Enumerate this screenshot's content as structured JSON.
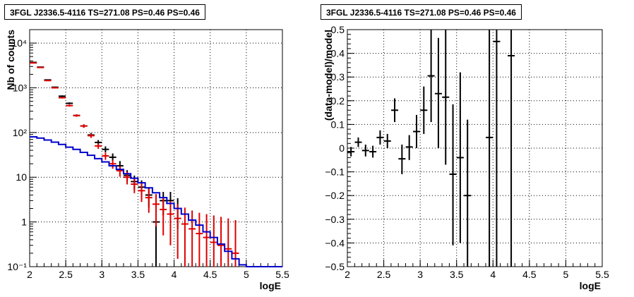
{
  "panels": {
    "left": {
      "title": "3FGL J2336.5-4116 TS=271.08 PS=0.46 PS=0.46",
      "chart_data": {
        "type": "line",
        "title": "3FGL J2336.5-4116 TS=271.08 PS=0.46 PS=0.46",
        "xlabel": "logE",
        "ylabel": "Nb of counts",
        "xlim": [
          2,
          5.5
        ],
        "ylim": [
          0.1,
          20000
        ],
        "yscale": "log",
        "grid": true,
        "x_ticks": [
          "2",
          "2.5",
          "3",
          "3.5",
          "4",
          "4.5",
          "5",
          "5.5"
        ],
        "y_ticks": [
          {
            "value": 0.1,
            "label": "10⁻¹"
          },
          {
            "value": 1,
            "label": "1"
          },
          {
            "value": 10,
            "label": "10"
          },
          {
            "value": 100,
            "label": "10²"
          },
          {
            "value": 1000,
            "label": "10³"
          },
          {
            "value": 10000,
            "label": "10⁴"
          }
        ],
        "series": [
          {
            "color": "#000000",
            "style": "errorbar",
            "x": [
              2.05,
              2.15,
              2.25,
              2.35,
              2.45,
              2.55,
              2.65,
              2.75,
              2.85,
              2.95,
              3.05,
              3.15,
              3.25,
              3.35,
              3.45,
              3.55,
              3.65,
              3.75,
              3.85,
              3.95,
              4.05
            ],
            "y": [
              3700,
              2900,
              1500,
              1030,
              650,
              450,
              240,
              140,
              88,
              60,
              42,
              28,
              18,
              11,
              8,
              6,
              4,
              1,
              3,
              3,
              2
            ],
            "y_low": [
              3640,
              2846,
              1461,
              998,
              625,
              429,
              225,
              128,
              79,
              52,
              36,
              23,
              14,
              8,
              5.2,
              3.6,
              2.1,
              0.1,
              1.4,
              1.4,
              0.7
            ],
            "y_high": [
              3760,
              2954,
              1539,
              1062,
              676,
              471,
              256,
              152,
              98,
              68,
              49,
              34,
              23,
              14.4,
              10.9,
              8.5,
              6,
              2.3,
              4.7,
              4.7,
              3.4
            ]
          },
          {
            "color": "#e00000",
            "style": "errorbar",
            "x": [
              2.05,
              2.15,
              2.25,
              2.35,
              2.45,
              2.55,
              2.65,
              2.75,
              2.85,
              2.95,
              3.05,
              3.15,
              3.25,
              3.35,
              3.45,
              3.55,
              3.65,
              3.75,
              3.85,
              3.95,
              4.05,
              4.15,
              4.25,
              4.35,
              4.45,
              4.55,
              4.65,
              4.75,
              4.85
            ],
            "y": [
              3600,
              2850,
              1450,
              1000,
              600,
              400,
              240,
              140,
              85,
              50,
              30,
              20,
              14,
              10,
              7,
              5,
              3.5,
              2.5,
              1.9,
              1.5,
              1.2,
              0.9,
              0.7,
              0.55,
              0.45,
              0.35,
              0.3,
              0.25,
              0.2
            ],
            "y_low": [
              3540,
              2797,
              1412,
              968,
              576,
              380,
              225,
              128,
              76,
              43,
              24.5,
              15.5,
              10.3,
              6.9,
              4.4,
              2.8,
              1.6,
              0.8,
              0.5,
              0.3,
              0.15,
              0.1,
              0.1,
              0.1,
              0.1,
              0.1,
              0.1,
              0.1,
              0.1
            ],
            "y_high": [
              3660,
              2903,
              1488,
              1032,
              624,
              420,
              256,
              152,
              94,
              57,
              35.5,
              24.5,
              17.7,
              13.2,
              9.7,
              7.3,
              5.5,
              4.2,
              3.4,
              2.9,
              2.5,
              2.1,
              1.8,
              1.6,
              1.5,
              1.4,
              1.3,
              1.2,
              1.1
            ]
          },
          {
            "color": "#0000cc",
            "style": "step",
            "x_edges": [
              2.0,
              2.1,
              2.2,
              2.3,
              2.4,
              2.5,
              2.6,
              2.7,
              2.8,
              2.9,
              3.0,
              3.1,
              3.2,
              3.3,
              3.4,
              3.5,
              3.6,
              3.7,
              3.8,
              3.9,
              4.0,
              4.1,
              4.2,
              4.3,
              4.4,
              4.5,
              4.6,
              4.7,
              4.8,
              4.9,
              5.0,
              5.1,
              5.2,
              5.3,
              5.4,
              5.5
            ],
            "y": [
              80,
              75,
              68,
              61,
              54,
              47,
              42,
              36,
              31,
              26,
              22,
              18,
              15,
              12,
              9.5,
              7.5,
              5.8,
              4.5,
              3.5,
              2.6,
              2.0,
              1.5,
              1.1,
              0.85,
              0.6,
              0.45,
              0.32,
              0.22,
              0.15,
              0.11,
              0.1,
              0.1,
              0.1,
              0.1,
              0.1
            ]
          }
        ]
      }
    },
    "right": {
      "title": "3FGL J2336.5-4116 TS=271.08 PS=0.46 PS=0.46",
      "chart_data": {
        "type": "scatter",
        "title": "3FGL J2336.5-4116 TS=271.08 PS=0.46 PS=0.46",
        "xlabel": "logE",
        "ylabel": "(data-model)/model",
        "xlim": [
          2,
          5.5
        ],
        "ylim": [
          -0.5,
          0.5
        ],
        "grid": true,
        "x_ticks": [
          "2",
          "2.5",
          "3",
          "3.5",
          "4",
          "4.5",
          "5",
          "5.5"
        ],
        "y_ticks": [
          "−0.5",
          "−0.4",
          "−0.3",
          "−0.2",
          "−0.1",
          "0",
          "0.1",
          "0.2",
          "0.3",
          "0.4",
          "0.5"
        ],
        "series": [
          {
            "color": "#000000",
            "style": "errorbar",
            "x": [
              2.05,
              2.15,
              2.25,
              2.35,
              2.45,
              2.55,
              2.65,
              2.75,
              2.85,
              2.95,
              3.05,
              3.15,
              3.25,
              3.35,
              3.45,
              3.55,
              3.65,
              3.95,
              4.05,
              4.25
            ],
            "y": [
              -0.015,
              0.025,
              -0.01,
              -0.015,
              0.045,
              0.03,
              0.16,
              -0.045,
              0.005,
              0.07,
              0.16,
              0.305,
              0.23,
              0.215,
              -0.11,
              -0.04,
              -0.2,
              0.045,
              0.45,
              0.39
            ],
            "y_low": [
              -0.035,
              0.005,
              -0.035,
              -0.04,
              0.015,
              0.0,
              0.11,
              -0.11,
              -0.05,
              0.0,
              0.06,
              0.11,
              0.0,
              -0.07,
              -0.41,
              -0.4,
              -0.5,
              -0.5,
              -0.5,
              -0.5
            ],
            "y_high": [
              0.005,
              0.045,
              0.015,
              0.01,
              0.075,
              0.06,
              0.21,
              0.015,
              0.055,
              0.14,
              0.26,
              0.5,
              0.465,
              0.5,
              0.185,
              0.32,
              0.12,
              0.5,
              0.5,
              0.5
            ]
          }
        ]
      }
    }
  }
}
